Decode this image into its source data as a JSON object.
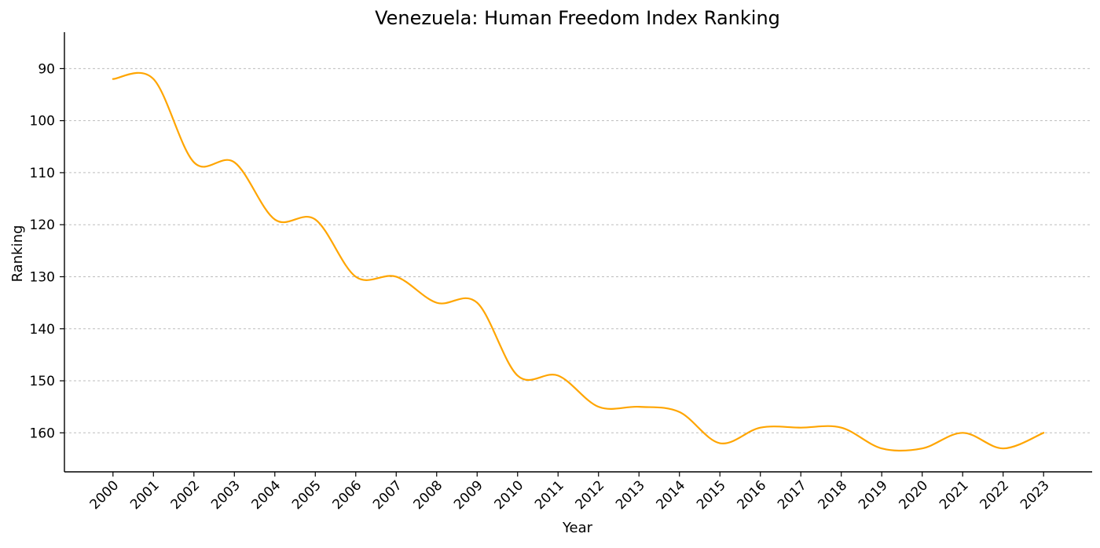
{
  "chart_data": {
    "type": "line",
    "title": "Venezuela: Human Freedom Index Ranking",
    "xlabel": "Year",
    "ylabel": "Ranking",
    "x": [
      2000,
      2001,
      2002,
      2003,
      2004,
      2005,
      2006,
      2007,
      2008,
      2009,
      2010,
      2011,
      2012,
      2013,
      2014,
      2015,
      2016,
      2017,
      2018,
      2019,
      2020,
      2021,
      2022,
      2023
    ],
    "x_tick_labels": [
      "2000",
      "2001",
      "2002",
      "2003",
      "2004",
      "2005",
      "2006",
      "2007",
      "2008",
      "2009",
      "2010",
      "2011",
      "2012",
      "2013",
      "2014",
      "2015",
      "2016",
      "2017",
      "2018",
      "2019",
      "2020",
      "2021",
      "2022",
      "2023"
    ],
    "series": [
      {
        "values": [
          92,
          92,
          108,
          108,
          119,
          119,
          130,
          130,
          135,
          135,
          149,
          149,
          155,
          155,
          156,
          162,
          159,
          159,
          159,
          163,
          163,
          160,
          163,
          160
        ],
        "color": "#FFA500"
      }
    ],
    "y_ticks": [
      90,
      100,
      110,
      120,
      130,
      140,
      150,
      160
    ],
    "y_tick_labels": [
      "90",
      "100",
      "110",
      "120",
      "130",
      "140",
      "150",
      "160"
    ],
    "xlim": [
      1998.8,
      2024.2
    ],
    "ylim": [
      167.5,
      83
    ],
    "y_inverted": true,
    "curve": "smoothed",
    "grid": "horizontal-dashed",
    "spines": "left-bottom",
    "x_tick_rotation": 45,
    "legend": "none"
  }
}
